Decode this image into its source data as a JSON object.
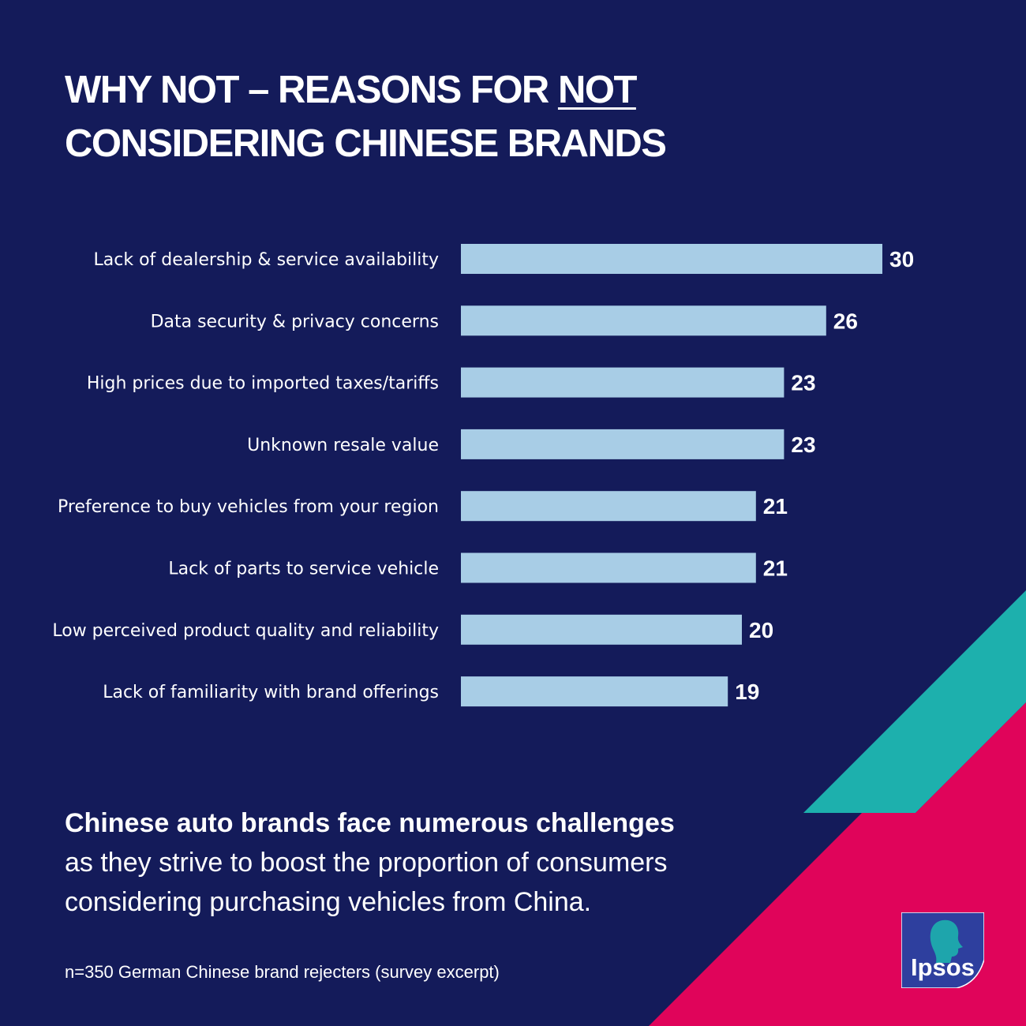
{
  "title": {
    "line1_prefix": "WHY NOT – REASONS FOR ",
    "line1_emph": "NOT",
    "line2": "CONSIDERING CHINESE BRANDS"
  },
  "chart_data": {
    "type": "bar",
    "orientation": "horizontal",
    "categories": [
      "Lack of dealership & service availability",
      "Data security & privacy concerns",
      "High prices due to imported taxes/tariffs",
      "Unknown resale value",
      "Preference to buy vehicles from your region",
      "Lack of parts to service vehicle",
      "Low perceived product quality and reliability",
      "Lack of familiarity with brand offerings"
    ],
    "values": [
      30,
      26,
      23,
      23,
      21,
      21,
      20,
      19
    ],
    "bar_color": "#a8cde6",
    "grid": false
  },
  "summary": {
    "bold": "Chinese auto brands face numerous challenges",
    "rest": "as they strive to boost the proportion of consumers considering purchasing vehicles from China."
  },
  "footnote": "n=350 German Chinese brand rejecters (survey excerpt)",
  "logo": {
    "text": "Ipsos",
    "bg_color": "#2e3f9e"
  },
  "colors": {
    "background": "#141b5a",
    "teal": "#1db0ad",
    "magenta": "#e0045a"
  }
}
